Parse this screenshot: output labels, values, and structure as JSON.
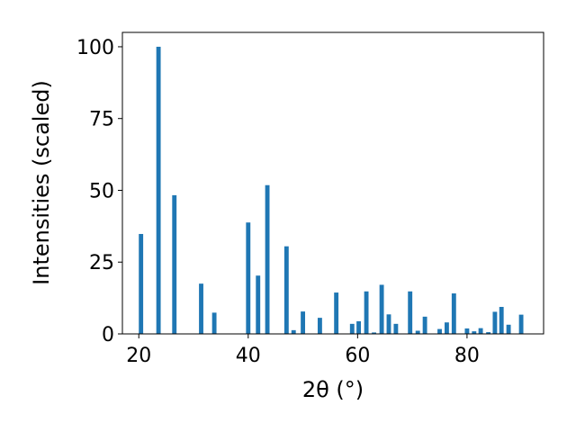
{
  "chart_data": {
    "type": "bar",
    "title": "",
    "xlabel": "2θ (°)",
    "ylabel": "Intensities (scaled)",
    "xlim": [
      17,
      94
    ],
    "ylim": [
      0,
      105
    ],
    "xticks": [
      20,
      40,
      60,
      80
    ],
    "yticks": [
      0,
      25,
      50,
      75,
      100
    ],
    "grid": false,
    "bar_color": "#1f77b4",
    "bar_width": 0.8,
    "x": [
      20.4,
      23.6,
      26.5,
      31.4,
      33.8,
      40.0,
      41.8,
      43.5,
      47.0,
      48.3,
      50.0,
      53.1,
      56.1,
      59.0,
      60.2,
      61.6,
      63.0,
      64.4,
      65.7,
      67.0,
      69.6,
      71.0,
      72.3,
      75.0,
      76.3,
      77.6,
      80.0,
      81.3,
      82.5,
      83.9,
      85.1,
      86.3,
      87.6,
      89.9
    ],
    "values": [
      34.8,
      100.0,
      48.3,
      17.5,
      7.4,
      38.8,
      20.3,
      51.8,
      30.5,
      1.3,
      7.8,
      5.6,
      14.4,
      3.5,
      4.4,
      14.8,
      0.5,
      17.1,
      6.8,
      3.5,
      14.8,
      1.1,
      6.0,
      1.7,
      4.0,
      14.1,
      1.9,
      0.9,
      2.0,
      0.6,
      7.7,
      9.4,
      3.2,
      6.7
    ]
  }
}
